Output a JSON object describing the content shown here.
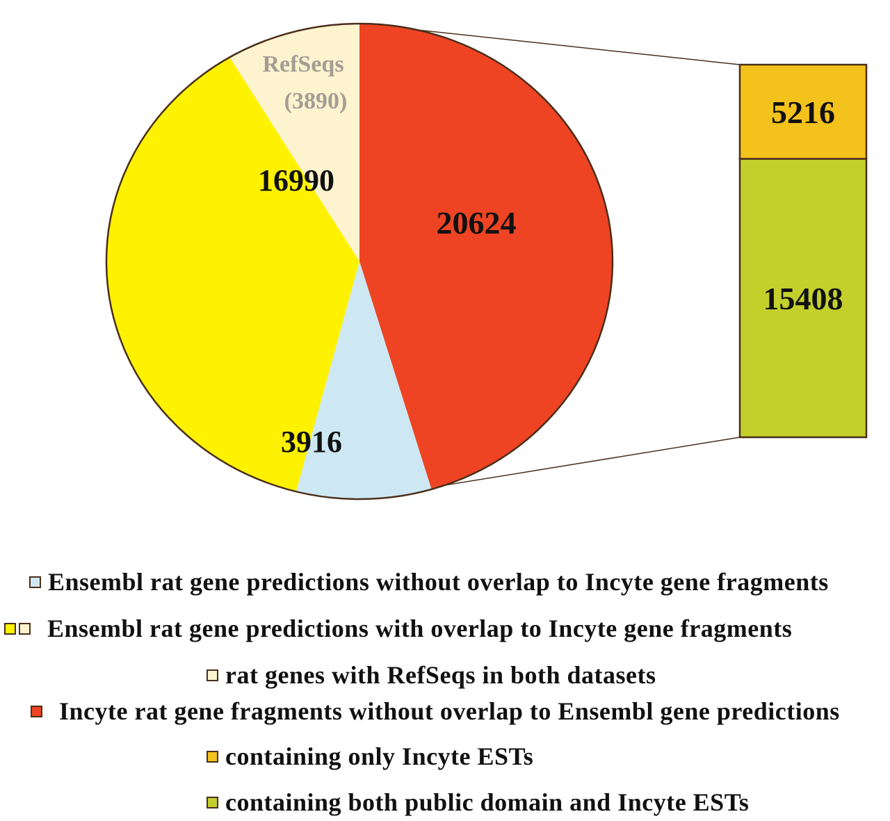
{
  "colors": {
    "ensembl_no_overlap": "#cde8f2",
    "ensembl_overlap": "#fff200",
    "refseqs": "#fdf3cf",
    "incyte_no_overlap": "#ee4423",
    "only_incyte_ests": "#f4c21c",
    "public_and_incyte": "#c3d02b",
    "outline": "#4a2e1a",
    "refseq_label": "#a39d93"
  },
  "chart_data": [
    {
      "type": "pie",
      "slices": [
        {
          "key": "incyte_no_overlap",
          "value": 20624,
          "label": "20624"
        },
        {
          "key": "ensembl_no_overlap",
          "value": 3916,
          "label": "3916"
        },
        {
          "key": "ensembl_overlap",
          "value": 16990,
          "label": "16990"
        },
        {
          "key": "refseqs",
          "value": 3890,
          "label_line1": "RefSeqs",
          "label_line2": "(3890)"
        }
      ]
    },
    {
      "type": "bar",
      "stacked": true,
      "breakdown_of": "20624",
      "segments": [
        {
          "key": "only_incyte_ests",
          "value": 5216,
          "label": "5216"
        },
        {
          "key": "public_and_incyte",
          "value": 15408,
          "label": "15408"
        }
      ]
    }
  ],
  "legend": {
    "items": [
      {
        "label": "Ensembl rat gene predictions without overlap to Incyte gene fragments",
        "color_key": "ensembl_no_overlap"
      },
      {
        "label": "Ensembl rat gene predictions with overlap to Incyte gene fragments",
        "color_key": "ensembl_overlap",
        "color_key_2": "refseqs"
      },
      {
        "label": "rat genes with RefSeqs in both datasets",
        "color_key": "refseqs"
      },
      {
        "label": "Incyte rat gene fragments without overlap to Ensembl gene predictions",
        "color_key": "incyte_no_overlap"
      },
      {
        "label": "containing only Incyte ESTs",
        "color_key": "only_incyte_ests"
      },
      {
        "label": "containing both public domain and Incyte ESTs",
        "color_key": "public_and_incyte"
      }
    ]
  }
}
